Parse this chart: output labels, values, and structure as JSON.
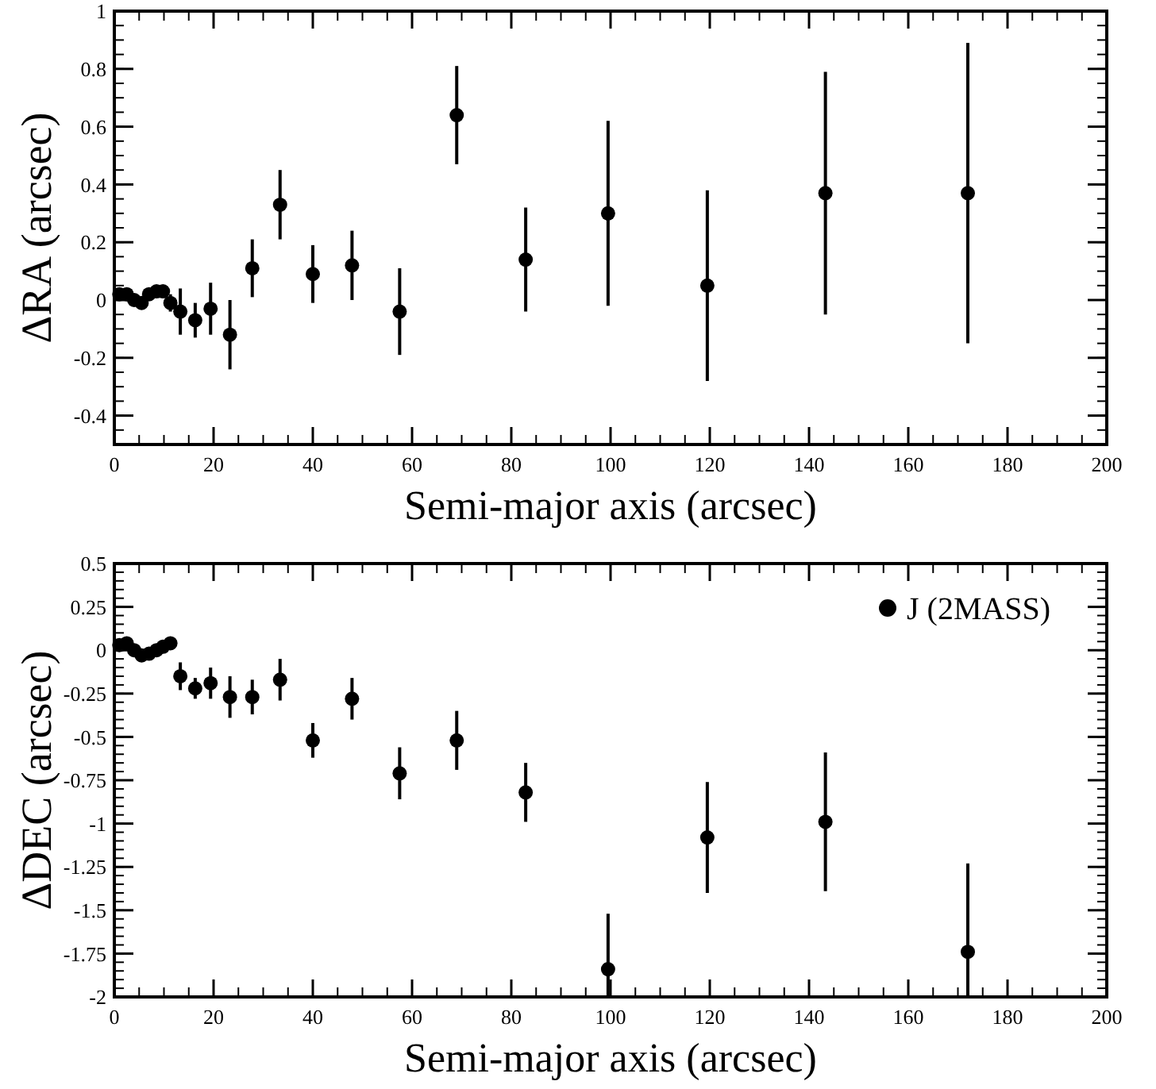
{
  "chart_data": [
    {
      "type": "scatter",
      "xlabel": "Semi-major axis (arcsec)",
      "ylabel": "ΔRA (arcsec)",
      "marker": "circle",
      "grid": false,
      "legend": false,
      "xlim": [
        0,
        200
      ],
      "xticks": [
        0,
        20,
        40,
        60,
        80,
        100,
        120,
        140,
        160,
        180,
        200
      ],
      "ylim": [
        -0.5,
        1
      ],
      "yticks": [
        {
          "value": -0.4,
          "label": "-0.4"
        },
        {
          "value": -0.2,
          "label": "-0.2"
        },
        0,
        0.2,
        0.4,
        0.6,
        0.8,
        1
      ],
      "x": [
        1,
        2.5,
        4,
        5.5,
        7,
        8.5,
        9.8,
        11.3,
        13.3,
        16.3,
        19.4,
        23.3,
        27.8,
        33.4,
        40,
        47.9,
        57.5,
        69,
        82.9,
        99.5,
        119.5,
        143.3,
        172
      ],
      "series": [
        {
          "color": "#000000",
          "values": [
            0.02,
            0.02,
            0,
            -0.01,
            0.02,
            0.03,
            0.03,
            -0.01,
            -0.04,
            -0.07,
            -0.03,
            -0.12,
            0.11,
            0.33,
            0.09,
            0.12,
            -0.04,
            0.64,
            0.14,
            0.3,
            0.05,
            0.37,
            0.37
          ],
          "errors": [
            0.02,
            0.02,
            0.02,
            0.02,
            0.02,
            0.02,
            0.02,
            0.03,
            0.08,
            0.06,
            0.09,
            0.12,
            0.1,
            0.12,
            0.1,
            0.12,
            0.15,
            0.17,
            0.18,
            0.32,
            0.33,
            0.42,
            0.52
          ]
        }
      ]
    },
    {
      "type": "scatter",
      "xlabel": "Semi-major axis (arcsec)",
      "ylabel": "ΔDEC (arcsec)",
      "marker": "circle",
      "grid": false,
      "legend": "top right",
      "xlim": [
        0,
        200
      ],
      "xticks": [
        0,
        20,
        40,
        60,
        80,
        100,
        120,
        140,
        160,
        180,
        200
      ],
      "ylim": [
        -2,
        0.5
      ],
      "yticks": [
        -2,
        -1.75,
        -1.5,
        -1.25,
        -1,
        -0.75,
        -0.5,
        -0.25,
        0,
        0.25,
        0.5
      ],
      "x": [
        1,
        2.5,
        4,
        5.5,
        7,
        8.5,
        9.8,
        11.3,
        13.3,
        16.3,
        19.4,
        23.3,
        27.8,
        33.4,
        40,
        47.9,
        57.5,
        69,
        82.9,
        99.5,
        119.5,
        143.3,
        172
      ],
      "series": [
        {
          "name": "J (2MASS)",
          "color": "#000000",
          "values": [
            0.03,
            0.04,
            0,
            -0.03,
            -0.02,
            0,
            0.02,
            0.04,
            -0.15,
            -0.22,
            -0.19,
            -0.27,
            -0.27,
            -0.17,
            -0.52,
            -0.28,
            -0.71,
            -0.52,
            -0.82,
            -1.84,
            -1.08,
            -0.99,
            -1.74
          ],
          "errors": [
            0.02,
            0.02,
            0.02,
            0.02,
            0.02,
            0.02,
            0.02,
            0.02,
            0.08,
            0.06,
            0.09,
            0.12,
            0.1,
            0.12,
            0.1,
            0.12,
            0.15,
            0.17,
            0.17,
            [
              -2,
              -1.52
            ],
            0.32,
            0.4,
            [
              -2,
              -1.23
            ]
          ]
        }
      ]
    }
  ]
}
